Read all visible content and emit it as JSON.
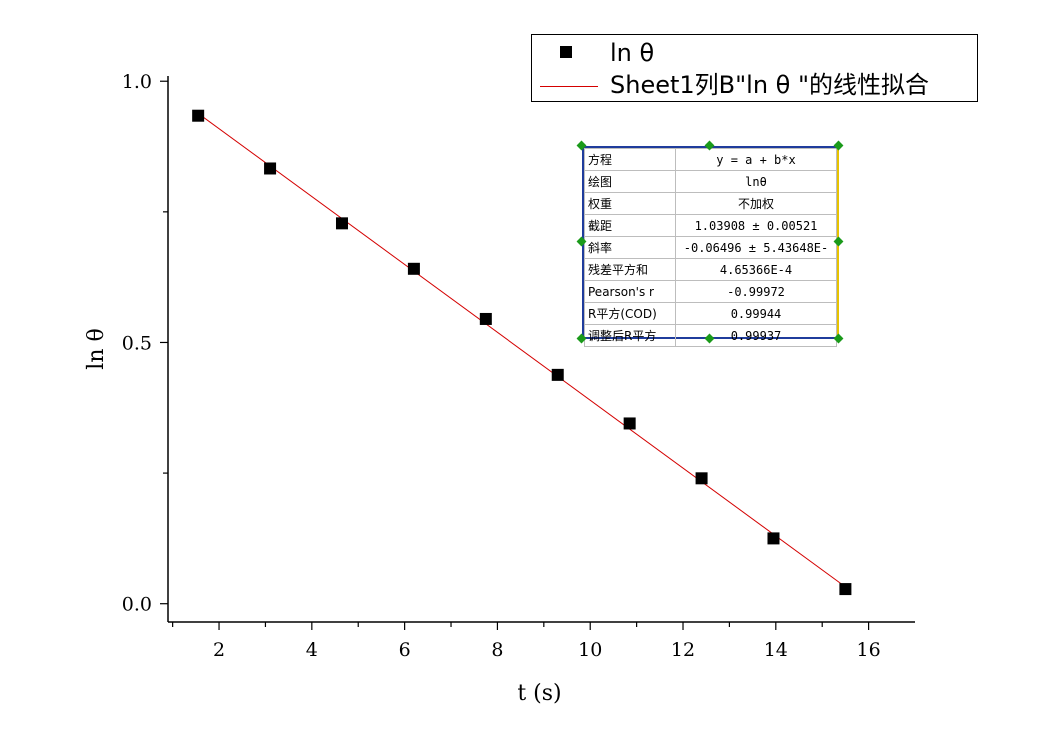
{
  "chart_data": {
    "type": "scatter",
    "xlabel": "t (s)",
    "ylabel": "ln θ",
    "xlim": [
      0.9,
      17.0
    ],
    "ylim": [
      -0.035,
      1.01
    ],
    "x_ticks": [
      "2",
      "4",
      "6",
      "8",
      "10",
      "12",
      "14",
      "16"
    ],
    "y_ticks": [
      "0.0",
      "0.5",
      "1.0"
    ],
    "series": [
      {
        "name": "ln θ",
        "kind": "points",
        "color": "#000000",
        "marker": "square",
        "x": [
          1.55,
          3.1,
          4.65,
          6.2,
          7.75,
          9.3,
          10.85,
          12.4,
          13.95,
          15.5
        ],
        "y": [
          0.934,
          0.833,
          0.728,
          0.641,
          0.545,
          0.438,
          0.345,
          0.24,
          0.125,
          0.028
        ]
      },
      {
        "name": "Sheet1列B\"ln θ \"的线性拟合",
        "kind": "line",
        "color": "#d40000",
        "intercept": 1.03908,
        "slope": -0.06496,
        "x_range": [
          1.55,
          15.5
        ]
      }
    ],
    "legend_position": "top-right",
    "grid": false
  },
  "legend": {
    "items": [
      {
        "label": "ln θ"
      },
      {
        "label": "Sheet1列B\"ln θ \"的线性拟合"
      }
    ]
  },
  "fit_table": {
    "rows": [
      {
        "key": "方程",
        "value": "y = a + b*x"
      },
      {
        "key": "绘图",
        "value": "lnθ"
      },
      {
        "key": "权重",
        "value": "不加权"
      },
      {
        "key": "截距",
        "value": "1.03908 ± 0.00521"
      },
      {
        "key": "斜率",
        "value": "-0.06496 ± 5.43648E-"
      },
      {
        "key": "残差平方和",
        "value": "4.65366E-4"
      },
      {
        "key": "Pearson's r",
        "value": "-0.99972"
      },
      {
        "key": "R平方(COD)",
        "value": "0.99944"
      },
      {
        "key": "调整后R平方",
        "value": "0.99937"
      }
    ]
  }
}
